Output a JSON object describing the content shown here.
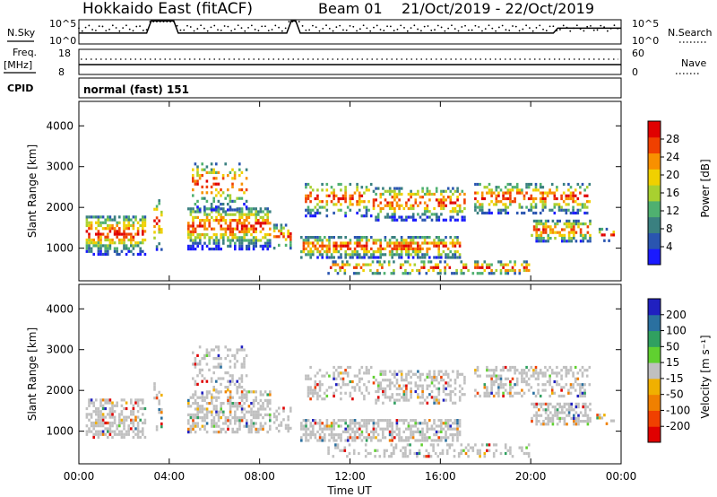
{
  "header": {
    "station": "Hokkaido East (fitACF)",
    "beam": "Beam 01",
    "dates": "21/Oct/2019 - 22/Oct/2019"
  },
  "info_panels": {
    "nsky_label": "N.Sky",
    "nsearch_label": "N.Search",
    "freq_label_1": "Freq.",
    "freq_label_2": "[MHz]",
    "nave_label": "Nave",
    "cpid_label": "CPID",
    "cpid_text": "normal (fast) 151",
    "noise_ticks_left": [
      "10^5",
      "10^0"
    ],
    "noise_ticks_right": [
      "10^5",
      "10^0"
    ],
    "freq_ticks": [
      "18",
      "8"
    ],
    "nave_ticks": [
      "60",
      "0"
    ]
  },
  "colors": {
    "power_scale": [
      "#1a1aff",
      "#2a55b0",
      "#3a8080",
      "#4fb070",
      "#a8d030",
      "#f0d000",
      "#f89000",
      "#f04000",
      "#e00000"
    ],
    "velocity_scale": [
      "#2020c0",
      "#2a70a0",
      "#30a060",
      "#60d030",
      "#c0c0c0",
      "#f0b000",
      "#f08000",
      "#f04000",
      "#e00000"
    ]
  },
  "chart_data": [
    {
      "type": "heatmap",
      "ylabel": "Slant Range [km]",
      "xlabel": "",
      "yticks": [
        "1000",
        "2000",
        "3000",
        "4000"
      ],
      "colorbar_label": "Power [dB]",
      "colorbar_ticks": [
        "4",
        "8",
        "12",
        "16",
        "20",
        "24",
        "28"
      ],
      "x_range_hours": [
        0,
        24
      ],
      "y_range_km": [
        200,
        4600
      ],
      "color_range": [
        0,
        32
      ]
    },
    {
      "type": "heatmap",
      "ylabel": "Slant Range [km]",
      "xlabel": "Time UT",
      "xticks": [
        "00:00",
        "04:00",
        "08:00",
        "12:00",
        "16:00",
        "20:00",
        "00:00"
      ],
      "yticks": [
        "1000",
        "2000",
        "3000",
        "4000"
      ],
      "colorbar_label": "Velocity [m s⁻¹]",
      "colorbar_ticks": [
        "200",
        "100",
        "50",
        "15",
        "-15",
        "-50",
        "-100",
        "-200"
      ],
      "x_range_hours": [
        0,
        24
      ],
      "y_range_km": [
        200,
        4600
      ]
    }
  ]
}
